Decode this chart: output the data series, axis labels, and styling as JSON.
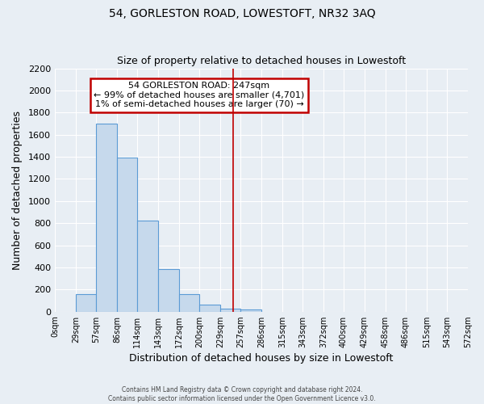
{
  "title": "54, GORLESTON ROAD, LOWESTOFT, NR32 3AQ",
  "subtitle": "Size of property relative to detached houses in Lowestoft",
  "xlabel": "Distribution of detached houses by size in Lowestoft",
  "ylabel": "Number of detached properties",
  "bar_color": "#c6d9ec",
  "bar_edge_color": "#5b9bd5",
  "bin_edges": [
    0,
    29,
    57,
    86,
    114,
    143,
    172,
    200,
    229,
    257,
    286,
    315,
    343,
    372,
    400,
    429,
    458,
    486,
    515,
    543,
    572
  ],
  "bar_heights": [
    0,
    155,
    1700,
    1390,
    820,
    385,
    160,
    65,
    30,
    20,
    0,
    0,
    0,
    0,
    0,
    0,
    0,
    0,
    0,
    0
  ],
  "tick_labels": [
    "0sqm",
    "29sqm",
    "57sqm",
    "86sqm",
    "114sqm",
    "143sqm",
    "172sqm",
    "200sqm",
    "229sqm",
    "257sqm",
    "286sqm",
    "315sqm",
    "343sqm",
    "372sqm",
    "400sqm",
    "429sqm",
    "458sqm",
    "486sqm",
    "515sqm",
    "543sqm",
    "572sqm"
  ],
  "ylim": [
    0,
    2200
  ],
  "yticks": [
    0,
    200,
    400,
    600,
    800,
    1000,
    1200,
    1400,
    1600,
    1800,
    2000,
    2200
  ],
  "vline_x": 247,
  "vline_color": "#c00000",
  "annotation_title": "54 GORLESTON ROAD: 247sqm",
  "annotation_line1": "← 99% of detached houses are smaller (4,701)",
  "annotation_line2": "1% of semi-detached houses are larger (70) →",
  "annotation_box_color": "#c00000",
  "footer_line1": "Contains HM Land Registry data © Crown copyright and database right 2024.",
  "footer_line2": "Contains public sector information licensed under the Open Government Licence v3.0.",
  "background_color": "#e8eef4",
  "grid_color": "#ffffff"
}
